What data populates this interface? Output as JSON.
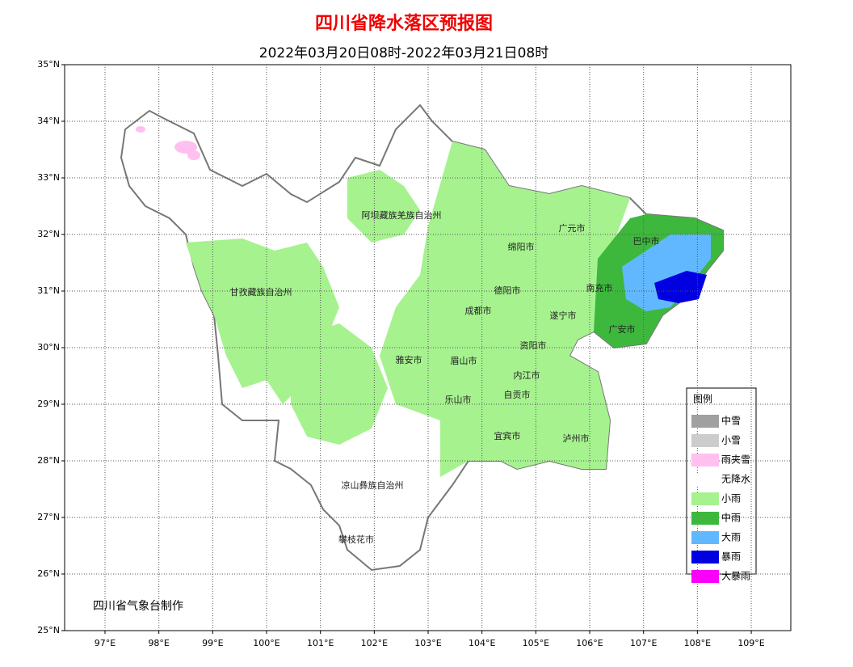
{
  "title": "四川省降水落区预报图",
  "subtitle": "2022年03月20日08时-2022年03月21日08时",
  "lat_labels": [
    "35°N",
    "34°N",
    "33°N",
    "32°N",
    "31°N",
    "30°N",
    "29°N",
    "28°N",
    "27°N",
    "26°N",
    "25°N"
  ],
  "lon_labels": [
    "97°E",
    "98°E",
    "99°E",
    "100°E",
    "101°E",
    "102°E",
    "103°E",
    "104°E",
    "105°E",
    "106°E",
    "107°E",
    "108°E",
    "109°E"
  ],
  "places": [
    "阿坝藏族羌族自治州",
    "甘孜藏族自治州",
    "广元市",
    "巴中市",
    "绵阳市",
    "德阳市",
    "南充市",
    "成都市",
    "遂宁市",
    "广安市",
    "资阳市",
    "雅安市",
    "眉山市",
    "内江市",
    "乐山市",
    "自贡市",
    "宜宾市",
    "泸州市",
    "凉山彝族自治州",
    "攀枝花市"
  ],
  "legend": {
    "title": "图例",
    "items": [
      {
        "label": "中雪",
        "color": "#a0a0a0"
      },
      {
        "label": "小雪",
        "color": "#cccccc"
      },
      {
        "label": "雨夹雪",
        "color": "#ffc0f0"
      },
      {
        "label": "无降水",
        "color": "#ffffff"
      },
      {
        "label": "小雨",
        "color": "#a6f28f"
      },
      {
        "label": "中雨",
        "color": "#3db83d"
      },
      {
        "label": "大雨",
        "color": "#61b8ff"
      },
      {
        "label": "暴雨",
        "color": "#0000e1"
      },
      {
        "label": "大暴雨",
        "color": "#fa00fa"
      }
    ]
  },
  "credit": "四川省气象台制作"
}
